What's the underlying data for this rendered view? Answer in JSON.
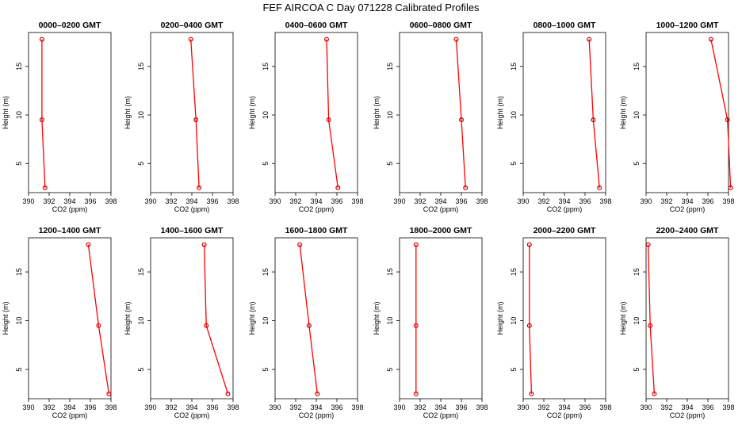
{
  "figure_title": "FEF AIRCOA C  Day 071228  Calibrated Profiles",
  "chart_data": [
    {
      "type": "line",
      "title": "0000–0200 GMT",
      "xlabel": "CO2 (ppm)",
      "ylabel": "Height (m)",
      "xlim": [
        390,
        398
      ],
      "ylim": [
        2,
        18.5
      ],
      "xticks": [
        390,
        392,
        394,
        396,
        398
      ],
      "yticks": [
        5,
        10,
        15
      ],
      "line_color": "#ff0000",
      "marker_color": "#cc0000",
      "x": [
        391.6,
        391.3,
        391.3
      ],
      "y": [
        2.5,
        9.5,
        17.8
      ]
    },
    {
      "type": "line",
      "title": "0200–0400 GMT",
      "xlabel": "CO2 (ppm)",
      "ylabel": "Height (m)",
      "xlim": [
        390,
        398
      ],
      "ylim": [
        2,
        18.5
      ],
      "xticks": [
        390,
        392,
        394,
        396,
        398
      ],
      "yticks": [
        5,
        10,
        15
      ],
      "line_color": "#ff0000",
      "marker_color": "#cc0000",
      "x": [
        394.7,
        394.4,
        393.9
      ],
      "y": [
        2.5,
        9.5,
        17.8
      ]
    },
    {
      "type": "line",
      "title": "0400–0600 GMT",
      "xlabel": "CO2 (ppm)",
      "ylabel": "Height (m)",
      "xlim": [
        390,
        398
      ],
      "ylim": [
        2,
        18.5
      ],
      "xticks": [
        390,
        392,
        394,
        396,
        398
      ],
      "yticks": [
        5,
        10,
        15
      ],
      "line_color": "#ff0000",
      "marker_color": "#cc0000",
      "x": [
        396.1,
        395.2,
        395.0
      ],
      "y": [
        2.5,
        9.5,
        17.8
      ]
    },
    {
      "type": "line",
      "title": "0600–0800 GMT",
      "xlabel": "CO2 (ppm)",
      "ylabel": "Height (m)",
      "xlim": [
        390,
        398
      ],
      "ylim": [
        2,
        18.5
      ],
      "xticks": [
        390,
        392,
        394,
        396,
        398
      ],
      "yticks": [
        5,
        10,
        15
      ],
      "line_color": "#ff0000",
      "marker_color": "#cc0000",
      "x": [
        396.4,
        396.0,
        395.5
      ],
      "y": [
        2.5,
        9.5,
        17.8
      ]
    },
    {
      "type": "line",
      "title": "0800–1000 GMT",
      "xlabel": "CO2 (ppm)",
      "ylabel": "Height (m)",
      "xlim": [
        390,
        398
      ],
      "ylim": [
        2,
        18.5
      ],
      "xticks": [
        390,
        392,
        394,
        396,
        398
      ],
      "yticks": [
        5,
        10,
        15
      ],
      "line_color": "#ff0000",
      "marker_color": "#cc0000",
      "x": [
        397.4,
        396.8,
        396.4
      ],
      "y": [
        2.5,
        9.5,
        17.8
      ]
    },
    {
      "type": "line",
      "title": "1000–1200 GMT",
      "xlabel": "CO2 (ppm)",
      "ylabel": "Height (m)",
      "xlim": [
        390,
        398
      ],
      "ylim": [
        2,
        18.5
      ],
      "xticks": [
        390,
        392,
        394,
        396,
        398
      ],
      "yticks": [
        5,
        10,
        15
      ],
      "line_color": "#ff0000",
      "marker_color": "#cc0000",
      "x": [
        398.2,
        397.9,
        396.3
      ],
      "y": [
        2.5,
        9.5,
        17.8
      ]
    },
    {
      "type": "line",
      "title": "1200–1400 GMT",
      "xlabel": "CO2 (ppm)",
      "ylabel": "Height (m)",
      "xlim": [
        390,
        398
      ],
      "ylim": [
        2,
        18.5
      ],
      "xticks": [
        390,
        392,
        394,
        396,
        398
      ],
      "yticks": [
        5,
        10,
        15
      ],
      "line_color": "#ff0000",
      "marker_color": "#cc0000",
      "x": [
        397.8,
        396.8,
        395.8
      ],
      "y": [
        2.5,
        9.5,
        17.8
      ]
    },
    {
      "type": "line",
      "title": "1400–1600 GMT",
      "xlabel": "CO2 (ppm)",
      "ylabel": "Height (m)",
      "xlim": [
        390,
        398
      ],
      "ylim": [
        2,
        18.5
      ],
      "xticks": [
        390,
        392,
        394,
        396,
        398
      ],
      "yticks": [
        5,
        10,
        15
      ],
      "line_color": "#ff0000",
      "marker_color": "#cc0000",
      "x": [
        397.5,
        395.4,
        395.2
      ],
      "y": [
        2.5,
        9.5,
        17.8
      ]
    },
    {
      "type": "line",
      "title": "1600–1800 GMT",
      "xlabel": "CO2 (ppm)",
      "ylabel": "Height (m)",
      "xlim": [
        390,
        398
      ],
      "ylim": [
        2,
        18.5
      ],
      "xticks": [
        390,
        392,
        394,
        396,
        398
      ],
      "yticks": [
        5,
        10,
        15
      ],
      "line_color": "#ff0000",
      "marker_color": "#cc0000",
      "x": [
        394.1,
        393.3,
        392.4
      ],
      "y": [
        2.5,
        9.5,
        17.8
      ]
    },
    {
      "type": "line",
      "title": "1800–2000 GMT",
      "xlabel": "CO2 (ppm)",
      "ylabel": "Height (m)",
      "xlim": [
        390,
        398
      ],
      "ylim": [
        2,
        18.5
      ],
      "xticks": [
        390,
        392,
        394,
        396,
        398
      ],
      "yticks": [
        5,
        10,
        15
      ],
      "line_color": "#ff0000",
      "marker_color": "#cc0000",
      "x": [
        391.6,
        391.6,
        391.6
      ],
      "y": [
        2.5,
        9.5,
        17.8
      ]
    },
    {
      "type": "line",
      "title": "2000–2200 GMT",
      "xlabel": "CO2 (ppm)",
      "ylabel": "Height (m)",
      "xlim": [
        390,
        398
      ],
      "ylim": [
        2,
        18.5
      ],
      "xticks": [
        390,
        392,
        394,
        396,
        398
      ],
      "yticks": [
        5,
        10,
        15
      ],
      "line_color": "#ff0000",
      "marker_color": "#cc0000",
      "x": [
        390.8,
        390.6,
        390.6
      ],
      "y": [
        2.5,
        9.5,
        17.8
      ]
    },
    {
      "type": "line",
      "title": "2200–2400 GMT",
      "xlabel": "CO2 (ppm)",
      "ylabel": "Height (m)",
      "xlim": [
        390,
        398
      ],
      "ylim": [
        2,
        18.5
      ],
      "xticks": [
        390,
        392,
        394,
        396,
        398
      ],
      "yticks": [
        5,
        10,
        15
      ],
      "line_color": "#ff0000",
      "marker_color": "#cc0000",
      "x": [
        390.8,
        390.4,
        390.2
      ],
      "y": [
        2.5,
        9.5,
        17.8
      ]
    }
  ]
}
